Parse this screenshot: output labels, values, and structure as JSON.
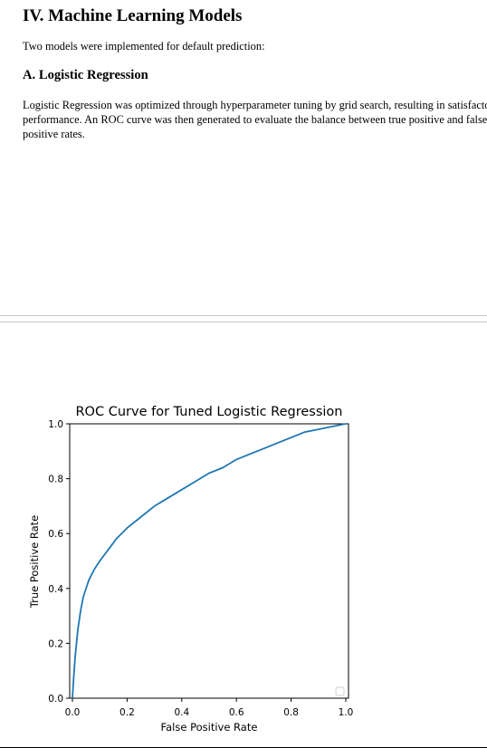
{
  "section": {
    "title": "IV. Machine Learning Models",
    "intro": "Two models were implemented for default prediction:"
  },
  "subsection": {
    "title": "A. Logistic Regression",
    "body": "Logistic Regression was optimized through hyperparameter tuning by grid search, resulting in satisfactory performance. An ROC curve was then generated to evaluate the balance between true positive and false positive rates."
  },
  "chart_data": {
    "type": "line",
    "title": "ROC Curve for Tuned Logistic Regression",
    "xlabel": "False Positive Rate",
    "ylabel": "True Positive Rate",
    "xlim": [
      0.0,
      1.0
    ],
    "ylim": [
      0.0,
      1.0
    ],
    "xticks": [
      "0.0",
      "0.2",
      "0.4",
      "0.6",
      "0.8",
      "1.0"
    ],
    "yticks": [
      "0.0",
      "0.2",
      "0.4",
      "0.6",
      "0.8",
      "1.0"
    ],
    "grid": false,
    "legend": "lower right (empty)",
    "color": "#1f77b4",
    "series": [
      {
        "x": [
          0.0,
          0.005,
          0.01,
          0.02,
          0.03,
          0.04,
          0.06,
          0.08,
          0.1,
          0.13,
          0.16,
          0.2,
          0.25,
          0.3,
          0.35,
          0.4,
          0.45,
          0.5,
          0.55,
          0.6,
          0.65,
          0.7,
          0.75,
          0.8,
          0.85,
          0.9,
          0.95,
          1.0
        ],
        "y": [
          0.0,
          0.08,
          0.15,
          0.25,
          0.32,
          0.37,
          0.43,
          0.47,
          0.5,
          0.54,
          0.58,
          0.62,
          0.66,
          0.7,
          0.73,
          0.76,
          0.79,
          0.82,
          0.84,
          0.87,
          0.89,
          0.91,
          0.93,
          0.95,
          0.97,
          0.98,
          0.99,
          1.0
        ]
      }
    ]
  }
}
